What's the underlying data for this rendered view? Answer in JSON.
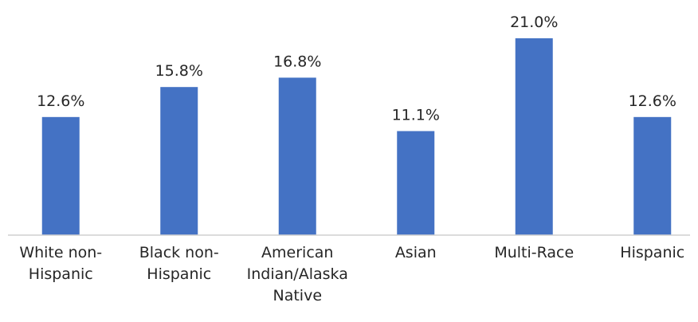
{
  "chart_data": {
    "type": "bar",
    "categories": [
      "White non-Hispanic",
      "Black non-Hispanic",
      "American Indian/Alaska Native",
      "Asian",
      "Multi-Race",
      "Hispanic"
    ],
    "values": [
      12.6,
      15.8,
      16.8,
      11.1,
      21.0,
      12.6
    ],
    "value_labels": [
      "12.6%",
      "15.8%",
      "16.8%",
      "11.1%",
      "21.0%",
      "12.6%"
    ],
    "color": "#4472c4",
    "ylim": [
      0,
      25
    ]
  }
}
